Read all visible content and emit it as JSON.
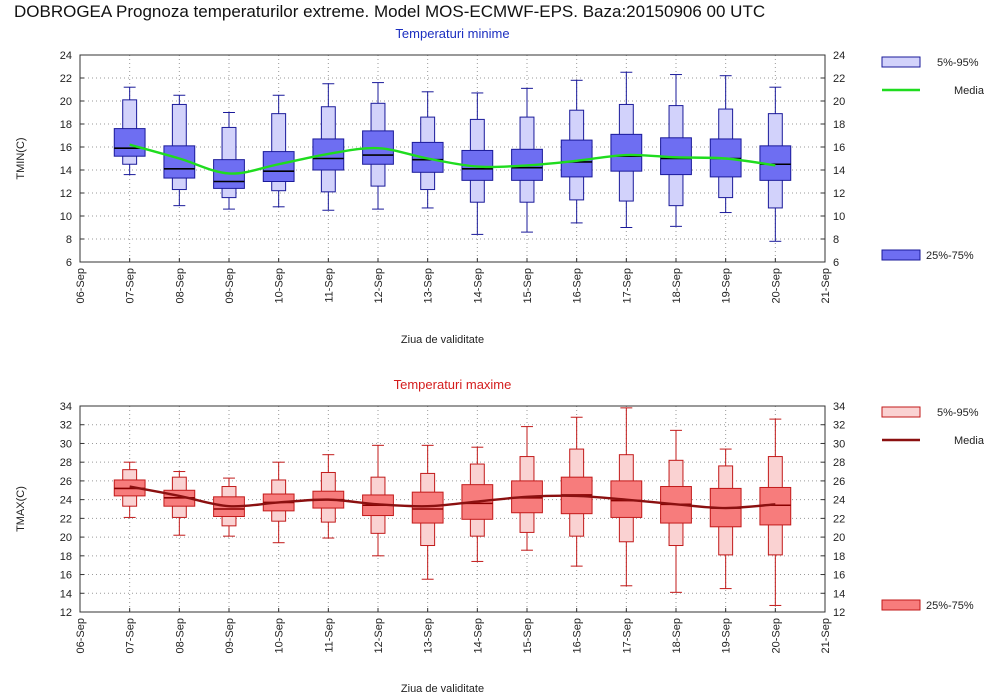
{
  "title": "DOBROGEA  Prognoza temperaturilor extreme.  Model MOS-ECMWF-EPS. Baza:20150906 00 UTC",
  "chart_data": [
    {
      "type": "box",
      "title": "Temperaturi minime",
      "ylabel": "TMIN(C)",
      "xlabel": "Ziua de validitate",
      "ylim": [
        6,
        24
      ],
      "yticks": [
        6,
        8,
        10,
        12,
        14,
        16,
        18,
        20,
        22,
        24
      ],
      "x_ticks": [
        "06-Sep",
        "07-Sep",
        "08-Sep",
        "09-Sep",
        "10-Sep",
        "11-Sep",
        "12-Sep",
        "13-Sep",
        "14-Sep",
        "15-Sep",
        "16-Sep",
        "17-Sep",
        "18-Sep",
        "19-Sep",
        "20-Sep",
        "21-Sep"
      ],
      "categories": [
        "07-Sep",
        "08-Sep",
        "09-Sep",
        "10-Sep",
        "11-Sep",
        "12-Sep",
        "13-Sep",
        "14-Sep",
        "15-Sep",
        "16-Sep",
        "17-Sep",
        "18-Sep",
        "19-Sep",
        "20-Sep"
      ],
      "min": [
        13.6,
        10.9,
        10.6,
        10.8,
        10.5,
        10.6,
        10.7,
        8.4,
        8.6,
        9.4,
        9.0,
        9.1,
        10.3,
        7.8
      ],
      "p5": [
        14.5,
        12.3,
        11.6,
        12.2,
        12.1,
        12.6,
        12.3,
        11.2,
        11.2,
        11.4,
        11.3,
        10.9,
        11.6,
        10.7
      ],
      "p25": [
        15.2,
        13.3,
        12.4,
        13.0,
        14.0,
        14.5,
        13.8,
        13.1,
        13.1,
        13.4,
        13.9,
        13.6,
        13.4,
        13.1
      ],
      "median": [
        15.9,
        14.1,
        13.0,
        13.9,
        15.0,
        15.3,
        14.9,
        14.1,
        14.2,
        14.7,
        15.2,
        15.0,
        15.0,
        14.5
      ],
      "p75": [
        17.6,
        16.1,
        14.9,
        15.6,
        16.7,
        17.4,
        16.4,
        15.7,
        15.8,
        16.6,
        17.1,
        16.8,
        16.7,
        16.1
      ],
      "p95": [
        20.1,
        19.7,
        17.7,
        18.9,
        19.5,
        19.8,
        18.6,
        18.4,
        18.6,
        19.2,
        19.7,
        19.6,
        19.3,
        18.9
      ],
      "max": [
        21.2,
        20.5,
        19.0,
        20.5,
        21.5,
        21.6,
        20.8,
        20.7,
        21.1,
        21.8,
        22.5,
        22.3,
        22.2,
        21.2
      ],
      "media": [
        16.2,
        15.0,
        13.7,
        14.5,
        15.4,
        15.9,
        15.0,
        14.3,
        14.4,
        14.8,
        15.3,
        15.1,
        15.0,
        14.4
      ],
      "colors": {
        "box": "#6e6ef2",
        "box_light": "#d2d2fb",
        "stroke": "#1a1a9a",
        "median": "#000000",
        "media": "#1fdc1f",
        "title": "#1c2fc0"
      },
      "legend": {
        "p5_95": "5%-95%",
        "media": "Media",
        "p25_75": "25%-75%"
      }
    },
    {
      "type": "box",
      "title": "Temperaturi maxime",
      "ylabel": "TMAX(C)",
      "xlabel": "Ziua de validitate",
      "ylim": [
        12,
        34
      ],
      "yticks": [
        12,
        14,
        16,
        18,
        20,
        22,
        24,
        26,
        28,
        30,
        32,
        34
      ],
      "x_ticks": [
        "06-Sep",
        "07-Sep",
        "08-Sep",
        "09-Sep",
        "10-Sep",
        "11-Sep",
        "12-Sep",
        "13-Sep",
        "14-Sep",
        "15-Sep",
        "16-Sep",
        "17-Sep",
        "18-Sep",
        "19-Sep",
        "20-Sep",
        "21-Sep"
      ],
      "categories": [
        "07-Sep",
        "08-Sep",
        "09-Sep",
        "10-Sep",
        "11-Sep",
        "12-Sep",
        "13-Sep",
        "14-Sep",
        "15-Sep",
        "16-Sep",
        "17-Sep",
        "18-Sep",
        "19-Sep",
        "20-Sep"
      ],
      "min": [
        22.1,
        20.2,
        20.1,
        19.4,
        19.9,
        18.0,
        15.5,
        17.4,
        18.6,
        16.9,
        14.8,
        14.1,
        14.5,
        12.7
      ],
      "p5": [
        23.3,
        22.1,
        21.2,
        21.7,
        21.6,
        20.4,
        19.1,
        20.1,
        20.5,
        20.1,
        19.5,
        19.1,
        18.1,
        18.1
      ],
      "p25": [
        24.4,
        23.3,
        22.2,
        22.8,
        23.1,
        22.3,
        21.5,
        21.9,
        22.6,
        22.5,
        22.1,
        21.5,
        21.1,
        21.3
      ],
      "median": [
        25.2,
        24.2,
        23.0,
        23.7,
        24.0,
        23.4,
        23.0,
        23.6,
        24.2,
        24.5,
        23.9,
        23.5,
        23.1,
        23.4
      ],
      "p75": [
        26.1,
        25.0,
        24.3,
        24.6,
        24.9,
        24.5,
        24.8,
        25.6,
        26.0,
        26.4,
        26.0,
        25.4,
        25.2,
        25.3
      ],
      "p95": [
        27.2,
        26.4,
        25.4,
        26.1,
        26.9,
        26.4,
        26.8,
        27.8,
        28.6,
        29.4,
        28.8,
        28.2,
        27.6,
        28.6
      ],
      "max": [
        28.0,
        27.0,
        26.3,
        28.0,
        28.8,
        29.8,
        29.8,
        29.6,
        31.8,
        32.8,
        33.8,
        31.4,
        29.4,
        32.6
      ],
      "media": [
        25.4,
        24.4,
        23.3,
        23.7,
        24.0,
        23.5,
        23.3,
        23.8,
        24.3,
        24.4,
        24.0,
        23.5,
        23.1,
        23.5
      ],
      "colors": {
        "box": "#f77c7c",
        "box_light": "#fad2d2",
        "stroke": "#c21a1a",
        "median": "#8b0000",
        "media": "#8b1010",
        "title": "#d41d1d"
      },
      "legend": {
        "p5_95": "5%-95%",
        "media": "Media",
        "p25_75": "25%-75%"
      }
    }
  ]
}
